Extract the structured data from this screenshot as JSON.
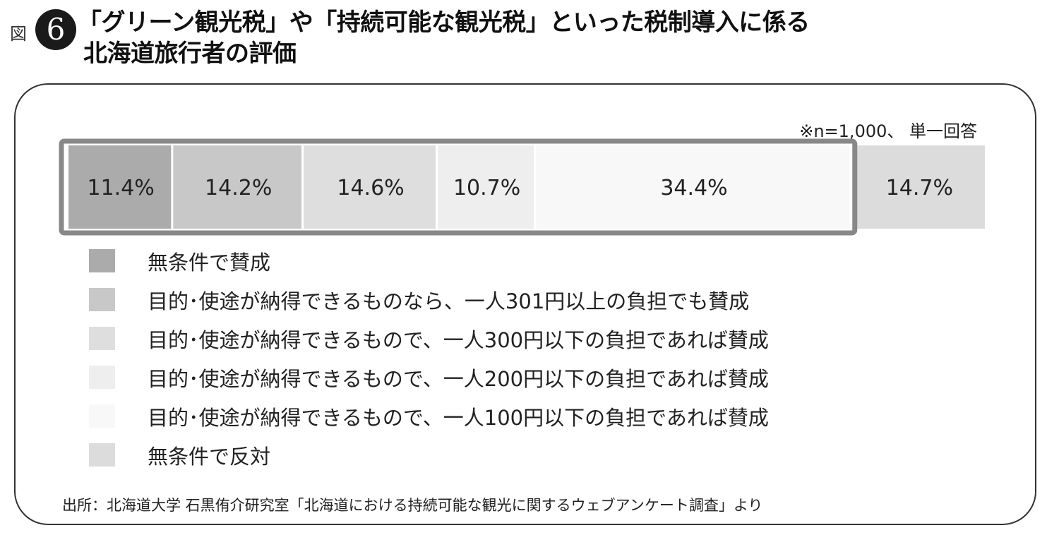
{
  "figure": {
    "label": "図",
    "number": "6",
    "title_line1": "「グリーン観光税」や「持続可能な観光税」といった税制導入に係る",
    "title_line2": "北海道旅行者の評価"
  },
  "note": "※n=1,000、 単一回答",
  "source": "出所：北海道大学 石黒侑介研究室「北海道における持続可能な観光に関するウェブアンケート調査」より",
  "chart_data": {
    "type": "bar",
    "orientation": "horizontal-stacked",
    "unit": "%",
    "xlim": [
      0,
      100
    ],
    "grid": false,
    "legend_position": "bottom",
    "categories": [
      "無条件で賛成",
      "目的･使途が納得できるものなら、一人301円以上の負担でも賛成",
      "目的･使途が納得できるもので、一人300円以下の負担であれば賛成",
      "目的･使途が納得できるもので、一人200円以下の負担であれば賛成",
      "目的･使途が納得できるもので、一人100円以下の負担であれば賛成",
      "無条件で反対"
    ],
    "values": [
      11.4,
      14.2,
      14.6,
      10.7,
      34.4,
      14.7
    ],
    "data_labels": [
      "11.4%",
      "14.2%",
      "14.6%",
      "10.7%",
      "34.4%",
      "14.7%"
    ],
    "colors": [
      "#ababab",
      "#c8c8c8",
      "#dedede",
      "#eeeeee",
      "#f8f8f8",
      "#dcdcdc"
    ],
    "highlight_group_end_index": 4,
    "highlight_color": "#888888"
  }
}
